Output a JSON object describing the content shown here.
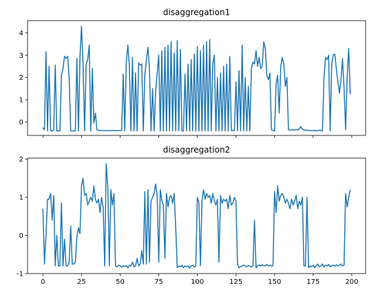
{
  "chart_data": [
    {
      "type": "line",
      "title": "disaggregation1",
      "x": [
        0,
        1,
        2,
        3,
        4,
        5,
        6,
        7,
        8,
        9,
        10,
        11,
        12,
        13,
        14,
        15,
        16,
        17,
        18,
        19,
        20,
        21,
        22,
        23,
        24,
        25,
        26,
        27,
        28,
        29,
        30,
        31,
        32,
        33,
        34,
        35,
        36,
        37,
        38,
        39,
        40,
        41,
        42,
        43,
        44,
        45,
        46,
        47,
        48,
        49,
        50,
        51,
        52,
        53,
        54,
        55,
        56,
        57,
        58,
        59,
        60,
        61,
        62,
        63,
        64,
        65,
        66,
        67,
        68,
        69,
        70,
        71,
        72,
        73,
        74,
        75,
        76,
        77,
        78,
        79,
        80,
        81,
        82,
        83,
        84,
        85,
        86,
        87,
        88,
        89,
        90,
        91,
        92,
        93,
        94,
        95,
        96,
        97,
        98,
        99,
        100,
        101,
        102,
        103,
        104,
        105,
        106,
        107,
        108,
        109,
        110,
        111,
        112,
        113,
        114,
        115,
        116,
        117,
        118,
        119,
        120,
        121,
        122,
        123,
        124,
        125,
        126,
        127,
        128,
        129,
        130,
        131,
        132,
        133,
        134,
        135,
        136,
        137,
        138,
        139,
        140,
        141,
        142,
        143,
        144,
        145,
        146,
        147,
        148,
        149,
        150,
        151,
        152,
        153,
        154,
        155,
        156,
        157,
        158,
        159,
        160,
        161,
        162,
        163,
        164,
        165,
        166,
        167,
        168,
        169,
        170,
        171,
        172,
        173,
        174,
        175,
        176,
        177,
        178,
        179,
        180,
        181,
        182,
        183,
        184,
        185,
        186,
        187,
        188,
        189,
        190,
        191,
        192,
        193,
        194,
        195,
        196,
        197,
        198,
        199
      ],
      "series": [
        {
          "color": "#1f77b4",
          "values": [
            -0.25,
            -0.35,
            3.15,
            -0.4,
            2.5,
            -0.4,
            -0.4,
            -0.35,
            2.55,
            -0.4,
            -0.4,
            -0.4,
            2.1,
            2.4,
            2.95,
            2.85,
            2.95,
            2.0,
            -0.4,
            -0.4,
            -0.4,
            -0.4,
            2.85,
            -0.4,
            2.9,
            4.3,
            2.6,
            -0.4,
            2.6,
            2.8,
            3.45,
            -0.4,
            2.4,
            -0.05,
            0.4,
            -0.35,
            -0.38,
            -0.38,
            -0.38,
            -0.38,
            -0.38,
            -0.39,
            -0.38,
            -0.38,
            -0.39,
            -0.38,
            -0.38,
            -0.38,
            -0.39,
            -0.38,
            -0.38,
            -0.38,
            2.15,
            -0.4,
            2.7,
            3.45,
            2.5,
            -0.4,
            2.9,
            -0.4,
            2.2,
            -0.4,
            2.65,
            2.55,
            2.6,
            -0.4,
            2.1,
            2.8,
            3.35,
            2.4,
            -0.4,
            1.5,
            -0.4,
            1.4,
            2.2,
            3.0,
            -0.4,
            3.2,
            -0.4,
            3.35,
            -0.4,
            3.45,
            -0.4,
            3.6,
            -0.4,
            3.1,
            -0.4,
            3.65,
            -0.4,
            3.25,
            -0.4,
            -0.4,
            2.15,
            -0.4,
            2.6,
            -0.4,
            2.8,
            -0.4,
            3.05,
            -0.4,
            3.4,
            -0.4,
            3.2,
            -0.4,
            3.45,
            -0.4,
            3.6,
            -0.4,
            3.7,
            -0.4,
            2.6,
            3.0,
            -0.4,
            2.0,
            -0.4,
            2.2,
            -0.4,
            2.5,
            -0.4,
            2.6,
            -0.4,
            2.95,
            -0.38,
            -0.38,
            -0.38,
            1.8,
            -0.4,
            2.3,
            -0.4,
            3.45,
            -0.4,
            2.0,
            -0.4,
            1.6,
            -0.4,
            2.4,
            2.7,
            2.6,
            3.2,
            2.5,
            2.9,
            2.4,
            2.5,
            3.6,
            3.3,
            2.1,
            1.9,
            2.2,
            -0.35,
            -0.38,
            -0.4,
            1.7,
            2.1,
            0.4,
            2.5,
            2.9,
            2.6,
            1.6,
            2.0,
            -0.35,
            -0.36,
            -0.35,
            -0.36,
            -0.35,
            -0.34,
            -0.36,
            -0.3,
            -0.2,
            -0.33,
            -0.35,
            -0.36,
            -0.38,
            -0.37,
            -0.38,
            -0.39,
            -0.38,
            -0.37,
            -0.4,
            -0.38,
            -0.37,
            -0.38,
            -0.4,
            2.0,
            2.9,
            2.8,
            3.0,
            -0.4,
            2.6,
            3.0,
            3.05,
            2.4,
            1.8,
            1.3,
            1.9,
            2.85,
            1.5,
            -0.35,
            2.0,
            3.3,
            1.25
          ]
        }
      ],
      "xlim": [
        -9.95,
        208.95
      ],
      "xticks": [
        0,
        25,
        50,
        75,
        100,
        125,
        150,
        175,
        200
      ],
      "ylim": [
        -0.6,
        4.55
      ],
      "yticks": [
        0,
        1,
        2,
        3,
        4
      ]
    },
    {
      "type": "line",
      "title": "disaggregation2",
      "x": [
        0,
        1,
        2,
        3,
        4,
        5,
        6,
        7,
        8,
        9,
        10,
        11,
        12,
        13,
        14,
        15,
        16,
        17,
        18,
        19,
        20,
        21,
        22,
        23,
        24,
        25,
        26,
        27,
        28,
        29,
        30,
        31,
        32,
        33,
        34,
        35,
        36,
        37,
        38,
        39,
        40,
        41,
        42,
        43,
        44,
        45,
        46,
        47,
        48,
        49,
        50,
        51,
        52,
        53,
        54,
        55,
        56,
        57,
        58,
        59,
        60,
        61,
        62,
        63,
        64,
        65,
        66,
        67,
        68,
        69,
        70,
        71,
        72,
        73,
        74,
        75,
        76,
        77,
        78,
        79,
        80,
        81,
        82,
        83,
        84,
        85,
        86,
        87,
        88,
        89,
        90,
        91,
        92,
        93,
        94,
        95,
        96,
        97,
        98,
        99,
        100,
        101,
        102,
        103,
        104,
        105,
        106,
        107,
        108,
        109,
        110,
        111,
        112,
        113,
        114,
        115,
        116,
        117,
        118,
        119,
        120,
        121,
        122,
        123,
        124,
        125,
        126,
        127,
        128,
        129,
        130,
        131,
        132,
        133,
        134,
        135,
        136,
        137,
        138,
        139,
        140,
        141,
        142,
        143,
        144,
        145,
        146,
        147,
        148,
        149,
        150,
        151,
        152,
        153,
        154,
        155,
        156,
        157,
        158,
        159,
        160,
        161,
        162,
        163,
        164,
        165,
        166,
        167,
        168,
        169,
        170,
        171,
        172,
        173,
        174,
        175,
        176,
        177,
        178,
        179,
        180,
        181,
        182,
        183,
        184,
        185,
        186,
        187,
        188,
        189,
        190,
        191,
        192,
        193,
        194,
        195,
        196,
        197,
        198,
        199
      ],
      "series": [
        {
          "color": "#1f77b4",
          "values": [
            0.7,
            -0.75,
            0.0,
            0.95,
            0.95,
            1.1,
            0.4,
            1.05,
            -0.8,
            0.0,
            -0.8,
            -0.8,
            0.85,
            -0.8,
            -0.1,
            -0.8,
            -0.8,
            -0.7,
            0.25,
            -0.75,
            -0.75,
            -0.7,
            -0.05,
            0.2,
            0.05,
            1.3,
            1.5,
            1.05,
            1.1,
            0.8,
            0.9,
            1.0,
            0.9,
            1.3,
            0.95,
            0.85,
            0.95,
            0.6,
            1.0,
            0.75,
            -0.8,
            1.88,
            1.3,
            -0.8,
            1.2,
            0.8,
            1.1,
            -0.8,
            -0.82,
            -0.78,
            -0.8,
            -0.83,
            -0.79,
            -0.81,
            -0.8,
            -0.85,
            -0.78,
            -0.8,
            -0.7,
            -0.82,
            -0.8,
            -0.6,
            -0.8,
            -0.75,
            -0.4,
            -0.75,
            1.15,
            -0.75,
            1.2,
            -0.7,
            0.9,
            1.0,
            1.1,
            1.35,
            1.05,
            -0.7,
            1.2,
            0.9,
            0.8,
            -0.6,
            1.1,
            0.75,
            1.0,
            1.05,
            0.85,
            1.1,
            0.2,
            -0.85,
            -0.8,
            -0.82,
            -0.78,
            -0.85,
            -0.8,
            -0.82,
            -0.8,
            -0.86,
            -0.8,
            -0.78,
            -0.83,
            -0.8,
            1.0,
            0.85,
            -0.8,
            0.9,
            1.2,
            0.95,
            1.1,
            1.0,
            1.05,
            0.85,
            1.1,
            0.9,
            0.8,
            0.95,
            -0.7,
            1.05,
            0.85,
            0.95,
            0.9,
            0.95,
            0.7,
            1.05,
            0.8,
            0.85,
            1.0,
            0.9,
            -0.75,
            -0.85,
            -0.82,
            -0.8,
            -0.78,
            -0.8,
            -0.82,
            -0.79,
            -0.8,
            -0.83,
            -0.8,
            0.4,
            -0.85,
            -0.8,
            -0.78,
            -0.8,
            -0.77,
            -0.79,
            -0.8,
            -0.76,
            -0.8,
            -0.78,
            -0.8,
            -0.79,
            1.15,
            0.6,
            1.3,
            0.9,
            1.05,
            1.1,
            1.0,
            0.85,
            0.95,
            0.85,
            0.7,
            0.95,
            0.8,
            0.9,
            1.05,
            0.7,
            0.9,
            0.8,
            1.0,
            -0.8,
            -0.8,
            1.0,
            -0.85,
            -0.8,
            -0.82,
            -0.78,
            -0.85,
            -0.8,
            -0.75,
            -0.82,
            -0.8,
            -0.75,
            -0.83,
            -0.78,
            -0.8,
            -0.76,
            -0.82,
            -0.8,
            -0.78,
            -0.8,
            -0.77,
            -0.8,
            -0.78,
            -0.75,
            -0.8,
            -0.78,
            1.1,
            0.75,
            1.0,
            1.2
          ]
        }
      ],
      "xlim": [
        -9.95,
        208.95
      ],
      "xticks": [
        0,
        25,
        50,
        75,
        100,
        125,
        150,
        175,
        200
      ],
      "ylim": [
        -1.0,
        2.03
      ],
      "yticks": [
        -1,
        0,
        1,
        2
      ]
    }
  ]
}
